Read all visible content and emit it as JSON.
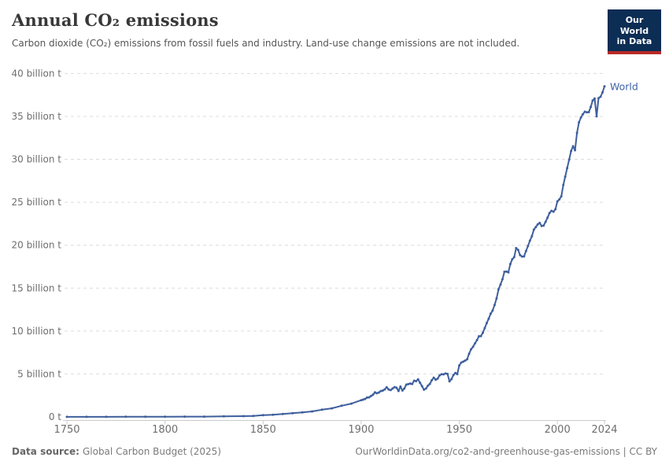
{
  "header": {
    "title": "Annual CO₂ emissions",
    "subtitle": "Carbon dioxide (CO₂) emissions from fossil fuels and industry. Land-use change emissions are not included.",
    "logo": {
      "line1": "Our World",
      "line2": "in Data"
    }
  },
  "footer": {
    "source_label": "Data source:",
    "source_text": "Global Carbon Budget (2025)",
    "credit": "OurWorldinData.org/co2-and-greenhouse-gas-emissions | CC BY"
  },
  "colors": {
    "series_line": "#3e5f9c",
    "series_label": "#3e62a6",
    "gridline": "#dcdcdc",
    "axis_line": "#cbcbcb",
    "tick_text": "#6e6e6e",
    "logo_bg": "#0c2d54",
    "logo_red": "#b92a26"
  },
  "chart_data": {
    "type": "line",
    "title": "Annual CO₂ emissions",
    "xlabel": "",
    "ylabel": "",
    "unit": "billion t",
    "xlim": [
      1750,
      2024
    ],
    "ylim": [
      0,
      40
    ],
    "grid": "horizontal-dashed",
    "legend_position": "end-of-line",
    "x_ticks": [
      1750,
      1800,
      1850,
      1900,
      1950,
      2000,
      2024
    ],
    "y_ticks": [
      {
        "value": 0,
        "label": "0 t"
      },
      {
        "value": 5,
        "label": "5 billion t"
      },
      {
        "value": 10,
        "label": "10 billion t"
      },
      {
        "value": 15,
        "label": "15 billion t"
      },
      {
        "value": 20,
        "label": "20 billion t"
      },
      {
        "value": 25,
        "label": "25 billion t"
      },
      {
        "value": 30,
        "label": "30 billion t"
      },
      {
        "value": 35,
        "label": "35 billion t"
      },
      {
        "value": 40,
        "label": "40 billion t"
      }
    ],
    "series": [
      {
        "name": "World",
        "color": "#3e5f9c",
        "points": [
          [
            1750,
            0.01
          ],
          [
            1760,
            0.01
          ],
          [
            1770,
            0.01
          ],
          [
            1780,
            0.02
          ],
          [
            1790,
            0.02
          ],
          [
            1800,
            0.03
          ],
          [
            1810,
            0.04
          ],
          [
            1820,
            0.04
          ],
          [
            1830,
            0.06
          ],
          [
            1840,
            0.09
          ],
          [
            1845,
            0.12
          ],
          [
            1850,
            0.2
          ],
          [
            1855,
            0.26
          ],
          [
            1860,
            0.34
          ],
          [
            1865,
            0.43
          ],
          [
            1870,
            0.53
          ],
          [
            1875,
            0.64
          ],
          [
            1880,
            0.84
          ],
          [
            1885,
            1.0
          ],
          [
            1890,
            1.3
          ],
          [
            1895,
            1.55
          ],
          [
            1900,
            1.95
          ],
          [
            1901,
            2.02
          ],
          [
            1902,
            2.1
          ],
          [
            1903,
            2.25
          ],
          [
            1904,
            2.28
          ],
          [
            1905,
            2.44
          ],
          [
            1906,
            2.58
          ],
          [
            1907,
            2.86
          ],
          [
            1908,
            2.76
          ],
          [
            1909,
            2.84
          ],
          [
            1910,
            3.01
          ],
          [
            1911,
            3.07
          ],
          [
            1912,
            3.21
          ],
          [
            1913,
            3.45
          ],
          [
            1914,
            3.2
          ],
          [
            1915,
            3.12
          ],
          [
            1916,
            3.31
          ],
          [
            1917,
            3.47
          ],
          [
            1918,
            3.4
          ],
          [
            1919,
            3.02
          ],
          [
            1920,
            3.54
          ],
          [
            1921,
            3.08
          ],
          [
            1922,
            3.31
          ],
          [
            1923,
            3.76
          ],
          [
            1924,
            3.82
          ],
          [
            1925,
            3.88
          ],
          [
            1926,
            3.84
          ],
          [
            1927,
            4.21
          ],
          [
            1928,
            4.17
          ],
          [
            1929,
            4.38
          ],
          [
            1930,
            3.98
          ],
          [
            1931,
            3.58
          ],
          [
            1932,
            3.17
          ],
          [
            1933,
            3.31
          ],
          [
            1934,
            3.64
          ],
          [
            1935,
            3.84
          ],
          [
            1936,
            4.27
          ],
          [
            1937,
            4.57
          ],
          [
            1938,
            4.33
          ],
          [
            1939,
            4.47
          ],
          [
            1940,
            4.85
          ],
          [
            1941,
            4.97
          ],
          [
            1942,
            4.96
          ],
          [
            1943,
            5.07
          ],
          [
            1944,
            5.0
          ],
          [
            1945,
            4.14
          ],
          [
            1946,
            4.4
          ],
          [
            1947,
            4.88
          ],
          [
            1948,
            5.12
          ],
          [
            1949,
            4.98
          ],
          [
            1950,
            5.99
          ],
          [
            1951,
            6.33
          ],
          [
            1952,
            6.43
          ],
          [
            1953,
            6.56
          ],
          [
            1954,
            6.71
          ],
          [
            1955,
            7.36
          ],
          [
            1956,
            7.88
          ],
          [
            1957,
            8.16
          ],
          [
            1958,
            8.57
          ],
          [
            1959,
            8.94
          ],
          [
            1960,
            9.39
          ],
          [
            1961,
            9.42
          ],
          [
            1962,
            9.8
          ],
          [
            1963,
            10.35
          ],
          [
            1964,
            10.93
          ],
          [
            1965,
            11.44
          ],
          [
            1966,
            12.02
          ],
          [
            1967,
            12.4
          ],
          [
            1968,
            13.04
          ],
          [
            1969,
            13.8
          ],
          [
            1970,
            14.86
          ],
          [
            1971,
            15.42
          ],
          [
            1972,
            16.03
          ],
          [
            1973,
            16.9
          ],
          [
            1974,
            16.93
          ],
          [
            1975,
            16.84
          ],
          [
            1976,
            17.81
          ],
          [
            1977,
            18.36
          ],
          [
            1978,
            18.61
          ],
          [
            1979,
            19.66
          ],
          [
            1980,
            19.45
          ],
          [
            1981,
            18.84
          ],
          [
            1982,
            18.68
          ],
          [
            1983,
            18.69
          ],
          [
            1984,
            19.32
          ],
          [
            1985,
            19.9
          ],
          [
            1986,
            20.53
          ],
          [
            1987,
            21.04
          ],
          [
            1988,
            21.81
          ],
          [
            1989,
            22.12
          ],
          [
            1990,
            22.43
          ],
          [
            1991,
            22.59
          ],
          [
            1992,
            22.24
          ],
          [
            1993,
            22.29
          ],
          [
            1994,
            22.72
          ],
          [
            1995,
            23.22
          ],
          [
            1996,
            23.75
          ],
          [
            1997,
            24.0
          ],
          [
            1998,
            23.9
          ],
          [
            1999,
            24.19
          ],
          [
            2000,
            25.1
          ],
          [
            2001,
            25.33
          ],
          [
            2002,
            25.7
          ],
          [
            2003,
            27.0
          ],
          [
            2004,
            27.98
          ],
          [
            2005,
            28.97
          ],
          [
            2006,
            29.96
          ],
          [
            2007,
            30.97
          ],
          [
            2008,
            31.53
          ],
          [
            2009,
            31.06
          ],
          [
            2010,
            33.08
          ],
          [
            2011,
            34.3
          ],
          [
            2012,
            34.87
          ],
          [
            2013,
            35.26
          ],
          [
            2014,
            35.55
          ],
          [
            2015,
            35.47
          ],
          [
            2016,
            35.5
          ],
          [
            2017,
            36.1
          ],
          [
            2018,
            36.85
          ],
          [
            2019,
            37.08
          ],
          [
            2020,
            35.01
          ],
          [
            2021,
            37.12
          ],
          [
            2022,
            37.29
          ],
          [
            2023,
            37.79
          ],
          [
            2024,
            38.5
          ]
        ]
      }
    ]
  }
}
